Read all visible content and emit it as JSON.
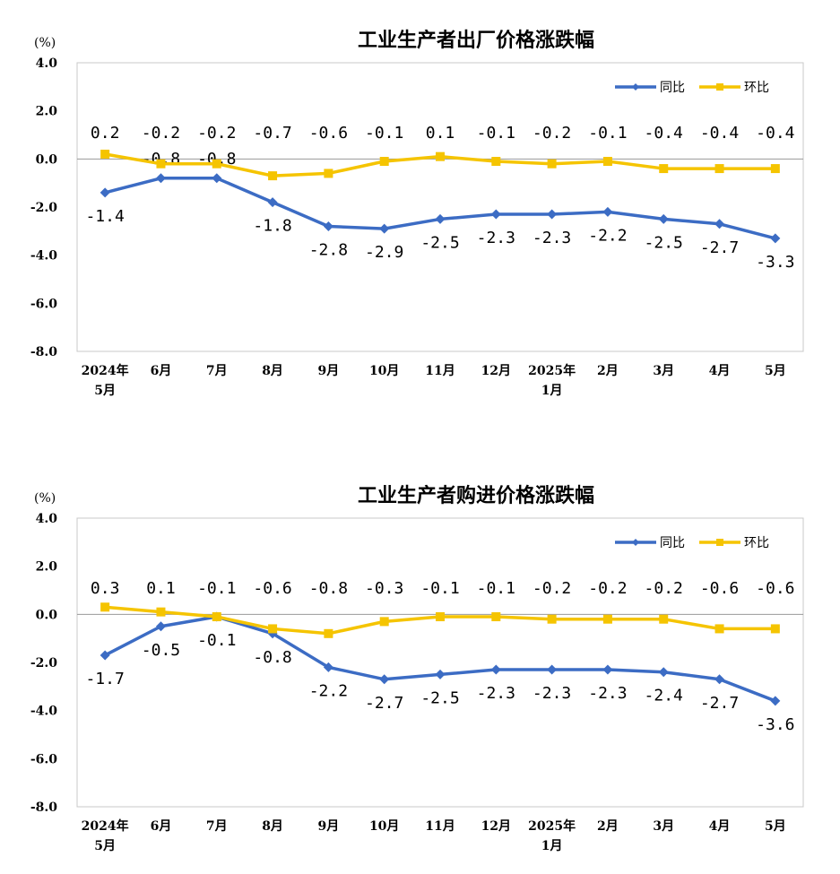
{
  "colors": {
    "yoy": "#3C6CC4",
    "mom": "#F5C400",
    "frame": "#c8c8c8",
    "zero": "#999999"
  },
  "chart_data": [
    {
      "type": "line",
      "title": "工业生产者出厂价格涨跌幅",
      "unit": "(%)",
      "ylim": [
        -8.0,
        4.0
      ],
      "yticks": [
        "4.0",
        "2.0",
        "0.0",
        "-2.0",
        "-4.0",
        "-6.0",
        "-8.0"
      ],
      "ytick_values": [
        4,
        2,
        0,
        -2,
        -4,
        -6,
        -8
      ],
      "categories": [
        [
          "2024年",
          "5月"
        ],
        [
          "6月"
        ],
        [
          "7月"
        ],
        [
          "8月"
        ],
        [
          "9月"
        ],
        [
          "10月"
        ],
        [
          "11月"
        ],
        [
          "12月"
        ],
        [
          "2025年",
          "1月"
        ],
        [
          "2月"
        ],
        [
          "3月"
        ],
        [
          "4月"
        ],
        [
          "5月"
        ]
      ],
      "legend": "top-right",
      "series": [
        {
          "name": "同比",
          "color": "#3C6CC4",
          "marker": "diamond",
          "values": [
            -1.4,
            -0.8,
            -0.8,
            -1.8,
            -2.8,
            -2.9,
            -2.5,
            -2.3,
            -2.3,
            -2.2,
            -2.5,
            -2.7,
            -3.3
          ],
          "labels": [
            "-1.4",
            "-0.8",
            "-0.8",
            "-1.8",
            "-2.8",
            "-2.9",
            "-2.5",
            "-2.3",
            "-2.3",
            "-2.2",
            "-2.5",
            "-2.7",
            "-3.3"
          ]
        },
        {
          "name": "环比",
          "color": "#F5C400",
          "marker": "square",
          "values": [
            0.2,
            -0.2,
            -0.2,
            -0.7,
            -0.6,
            -0.1,
            0.1,
            -0.1,
            -0.2,
            -0.1,
            -0.4,
            -0.4,
            -0.4
          ],
          "labels": [
            "0.2",
            "-0.2",
            "-0.2",
            "-0.7",
            "-0.6",
            "-0.1",
            "0.1",
            "-0.1",
            "-0.2",
            "-0.1",
            "-0.4",
            "-0.4",
            "-0.4"
          ]
        }
      ]
    },
    {
      "type": "line",
      "title": "工业生产者购进价格涨跌幅",
      "unit": "(%)",
      "ylim": [
        -8.0,
        4.0
      ],
      "yticks": [
        "4.0",
        "2.0",
        "0.0",
        "-2.0",
        "-4.0",
        "-6.0",
        "-8.0"
      ],
      "ytick_values": [
        4,
        2,
        0,
        -2,
        -4,
        -6,
        -8
      ],
      "categories": [
        [
          "2024年",
          "5月"
        ],
        [
          "6月"
        ],
        [
          "7月"
        ],
        [
          "8月"
        ],
        [
          "9月"
        ],
        [
          "10月"
        ],
        [
          "11月"
        ],
        [
          "12月"
        ],
        [
          "2025年",
          "1月"
        ],
        [
          "2月"
        ],
        [
          "3月"
        ],
        [
          "4月"
        ],
        [
          "5月"
        ]
      ],
      "legend": "top-right",
      "series": [
        {
          "name": "同比",
          "color": "#3C6CC4",
          "marker": "diamond",
          "values": [
            -1.7,
            -0.5,
            -0.1,
            -0.8,
            -2.2,
            -2.7,
            -2.5,
            -2.3,
            -2.3,
            -2.3,
            -2.4,
            -2.7,
            -3.6
          ],
          "labels": [
            "-1.7",
            "-0.5",
            "-0.1",
            "-0.8",
            "-2.2",
            "-2.7",
            "-2.5",
            "-2.3",
            "-2.3",
            "-2.3",
            "-2.4",
            "-2.7",
            "-3.6"
          ]
        },
        {
          "name": "环比",
          "color": "#F5C400",
          "marker": "square",
          "values": [
            0.3,
            0.1,
            -0.1,
            -0.6,
            -0.8,
            -0.3,
            -0.1,
            -0.1,
            -0.2,
            -0.2,
            -0.2,
            -0.6,
            -0.6
          ],
          "labels": [
            "0.3",
            "0.1",
            "-0.1",
            "-0.6",
            "-0.8",
            "-0.3",
            "-0.1",
            "-0.1",
            "-0.2",
            "-0.2",
            "-0.2",
            "-0.6",
            "-0.6"
          ]
        }
      ]
    }
  ]
}
